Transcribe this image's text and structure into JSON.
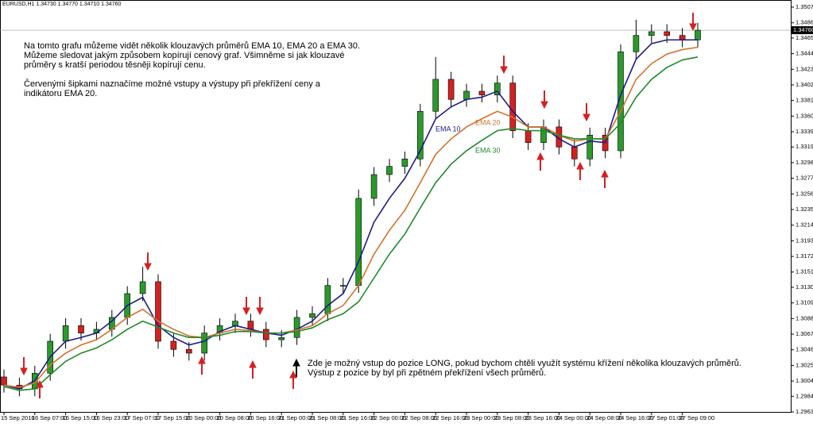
{
  "chart_data": {
    "type": "candlestick",
    "title": "EURUSD,H1  1.34730 1.34770 1.34710 1.34760",
    "categories": [
      "15 Sep 2010",
      null,
      "16 Sep 07:00",
      null,
      "16 Sep 15:00",
      null,
      "16 Sep 23:00",
      null,
      "17 Sep 07:00",
      null,
      "17 Sep 15:00",
      null,
      "20 Sep 00:00",
      null,
      "20 Sep 08:00",
      null,
      "20 Sep 16:00",
      null,
      "21 Sep 00:00",
      null,
      "21 Sep 08:00",
      null,
      "21 Sep 16:00",
      null,
      "22 Sep 00:00",
      null,
      "22 Sep 08:00",
      null,
      "22 Sep 16:00",
      null,
      "23 Sep 00:00",
      null,
      "23 Sep 08:00",
      null,
      "23 Sep 16:00",
      null,
      "24 Sep 00:00",
      null,
      "24 Sep 08:00",
      null,
      "24 Sep 16:00",
      null,
      "27 Sep 01:00",
      null,
      "27 Sep 09:00",
      null
    ],
    "open": [
      1.301,
      1.2999,
      1.2994,
      1.3015,
      1.3058,
      1.3079,
      1.3069,
      1.3074,
      1.309,
      1.3122,
      1.3138,
      1.3058,
      1.3047,
      1.3042,
      1.3069,
      1.3079,
      1.3085,
      1.3074,
      1.306,
      1.3063,
      1.309,
      1.3095,
      1.3133,
      1.3133,
      1.325,
      1.3282,
      1.3293,
      1.3303,
      1.3367,
      1.341,
      1.3383,
      1.3394,
      1.3389,
      1.3405,
      1.3341,
      1.3325,
      1.3346,
      1.3319,
      1.3303,
      1.3335,
      1.3314,
      1.3447,
      1.3469,
      1.3474,
      1.3469,
      1.3463
    ],
    "high": [
      1.302,
      1.3009,
      1.3025,
      1.3068,
      1.3089,
      1.3089,
      1.3084,
      1.31,
      1.3132,
      1.3158,
      1.3148,
      1.3068,
      1.3057,
      1.3079,
      1.3089,
      1.3095,
      1.3095,
      1.3084,
      1.3073,
      1.31,
      1.3105,
      1.3143,
      1.3143,
      1.3262,
      1.3292,
      1.3303,
      1.3313,
      1.3377,
      1.344,
      1.342,
      1.3404,
      1.3404,
      1.3415,
      1.3415,
      1.3351,
      1.3356,
      1.3356,
      1.3329,
      1.3345,
      1.3345,
      1.3457,
      1.349,
      1.3484,
      1.3484,
      1.3479,
      1.3486
    ],
    "low": [
      1.2989,
      1.2984,
      1.2984,
      1.3005,
      1.3048,
      1.3059,
      1.3059,
      1.3064,
      1.308,
      1.3112,
      1.3048,
      1.3037,
      1.3032,
      1.3032,
      1.3059,
      1.3069,
      1.3064,
      1.305,
      1.305,
      1.3053,
      1.308,
      1.3085,
      1.3123,
      1.3123,
      1.324,
      1.3272,
      1.3283,
      1.3293,
      1.3357,
      1.3373,
      1.3373,
      1.3379,
      1.3379,
      1.3331,
      1.3315,
      1.3315,
      1.3309,
      1.3293,
      1.3293,
      1.3304,
      1.3304,
      1.3437,
      1.3459,
      1.3459,
      1.3453,
      1.3453
    ],
    "close": [
      1.2999,
      1.2994,
      1.3015,
      1.3058,
      1.3079,
      1.3069,
      1.3074,
      1.309,
      1.3122,
      1.3138,
      1.3058,
      1.3047,
      1.3042,
      1.3069,
      1.3079,
      1.3085,
      1.3074,
      1.306,
      1.3063,
      1.309,
      1.3095,
      1.3133,
      1.3133,
      1.325,
      1.3282,
      1.3293,
      1.3303,
      1.3367,
      1.341,
      1.3383,
      1.3394,
      1.3389,
      1.3405,
      1.3341,
      1.3325,
      1.3346,
      1.3319,
      1.3303,
      1.3335,
      1.3314,
      1.3447,
      1.3469,
      1.3474,
      1.3469,
      1.3463,
      1.3476
    ],
    "up_color": "#2a9a2a",
    "down_color": "#d42020",
    "series": [
      {
        "name": "EMA 10",
        "color": "#1c1c86",
        "values": [
          1.2999,
          1.2994,
          1.3005,
          1.3037,
          1.3058,
          1.3063,
          1.3069,
          1.3085,
          1.3106,
          1.3117,
          1.3079,
          1.3063,
          1.3053,
          1.3058,
          1.3071,
          1.3079,
          1.3074,
          1.3069,
          1.3066,
          1.3074,
          1.3085,
          1.3106,
          1.3122,
          1.3165,
          1.3218,
          1.325,
          1.3277,
          1.3314,
          1.3357,
          1.3373,
          1.3383,
          1.3386,
          1.3394,
          1.3367,
          1.3346,
          1.3346,
          1.333,
          1.3319,
          1.3327,
          1.3325,
          1.3389,
          1.3437,
          1.3458,
          1.3463,
          1.3463,
          1.3463
        ]
      },
      {
        "name": "EMA 20",
        "color": "#d2722e",
        "values": [
          1.2999,
          1.2996,
          1.3002,
          1.3026,
          1.3042,
          1.3053,
          1.306,
          1.3074,
          1.309,
          1.3101,
          1.3085,
          1.3074,
          1.3065,
          1.3063,
          1.3069,
          1.3074,
          1.3072,
          1.3069,
          1.3069,
          1.3073,
          1.3079,
          1.3095,
          1.3106,
          1.3133,
          1.3175,
          1.3207,
          1.3234,
          1.3271,
          1.3309,
          1.333,
          1.3346,
          1.3357,
          1.3367,
          1.3359,
          1.3346,
          1.3346,
          1.3335,
          1.3327,
          1.333,
          1.333,
          1.3367,
          1.341,
          1.3431,
          1.3444,
          1.345,
          1.3453
        ]
      },
      {
        "name": "EMA 30",
        "color": "#1f8a2a",
        "values": [
          1.2997,
          1.2992,
          1.2994,
          1.3013,
          1.3031,
          1.3042,
          1.3049,
          1.306,
          1.3074,
          1.3085,
          1.3077,
          1.3069,
          1.3063,
          1.3063,
          1.3066,
          1.3071,
          1.3071,
          1.3069,
          1.3069,
          1.3071,
          1.3076,
          1.3087,
          1.3095,
          1.3111,
          1.3143,
          1.3175,
          1.3202,
          1.3237,
          1.3271,
          1.3296,
          1.3314,
          1.3328,
          1.3341,
          1.3344,
          1.3341,
          1.3341,
          1.3335,
          1.333,
          1.333,
          1.333,
          1.3351,
          1.3386,
          1.341,
          1.3426,
          1.3436,
          1.344
        ]
      }
    ],
    "ylim": [
      1.2963,
      1.3507
    ],
    "yticks": [
      {
        "value": 1.3507,
        "label": "1.35070"
      },
      {
        "value": 1.3486,
        "label": "1.34860"
      },
      {
        "value": 1.34655,
        "label": "1.34655"
      },
      {
        "value": 1.34445,
        "label": "1.34445"
      },
      {
        "value": 1.34235,
        "label": "1.34235"
      },
      {
        "value": 1.34025,
        "label": "1.34025"
      },
      {
        "value": 1.33815,
        "label": "1.33815"
      },
      {
        "value": 1.33605,
        "label": "1.33605"
      },
      {
        "value": 1.33395,
        "label": "1.33395"
      },
      {
        "value": 1.3319,
        "label": "1.33190"
      },
      {
        "value": 1.3298,
        "label": "1.32980"
      },
      {
        "value": 1.3277,
        "label": "1.32770"
      },
      {
        "value": 1.3256,
        "label": "1.32560"
      },
      {
        "value": 1.3235,
        "label": "1.32350"
      },
      {
        "value": 1.3214,
        "label": "1.32140"
      },
      {
        "value": 1.3193,
        "label": "1.31930"
      },
      {
        "value": 1.3172,
        "label": "1.31720"
      },
      {
        "value": 1.3151,
        "label": "1.31510"
      },
      {
        "value": 1.31305,
        "label": "1.31305"
      },
      {
        "value": 1.31095,
        "label": "1.31095"
      },
      {
        "value": 1.30885,
        "label": "1.30885"
      },
      {
        "value": 1.30675,
        "label": "1.30675"
      },
      {
        "value": 1.30465,
        "label": "1.30465"
      },
      {
        "value": 1.30255,
        "label": "1.30255"
      },
      {
        "value": 1.30045,
        "label": "1.30045"
      },
      {
        "value": 1.2984,
        "label": "1.29840"
      },
      {
        "value": 1.2963,
        "label": "1.29630"
      }
    ],
    "price_marker": {
      "value": 1.3476,
      "label": "1.34760"
    },
    "grid": false,
    "annotations": [
      {
        "lines": [
          "Na tomto grafu můžeme vidět několik klouzavých průměrů EMA 10, EMA 20 a EMA 30.",
          "Můžeme sledovat jakým způsobem kopírují cenový graf. Všimněme si jak klouzavé",
          "průměry s kratší periodou těsněji kopírují cenu."
        ]
      },
      {
        "lines": [
          "Červenými šipkami naznačíme možné vstupy a výstupy při překřížení ceny a",
          "indikátoru EMA 20."
        ]
      },
      {
        "lines": [
          "Zde je možný vstup do pozice LONG, pokud bychom chtěli využít systému křížení několika klouzavých průměrů.",
          "Výstup z pozice by byl při zpětném překřížení všech průměrů."
        ]
      }
    ]
  }
}
